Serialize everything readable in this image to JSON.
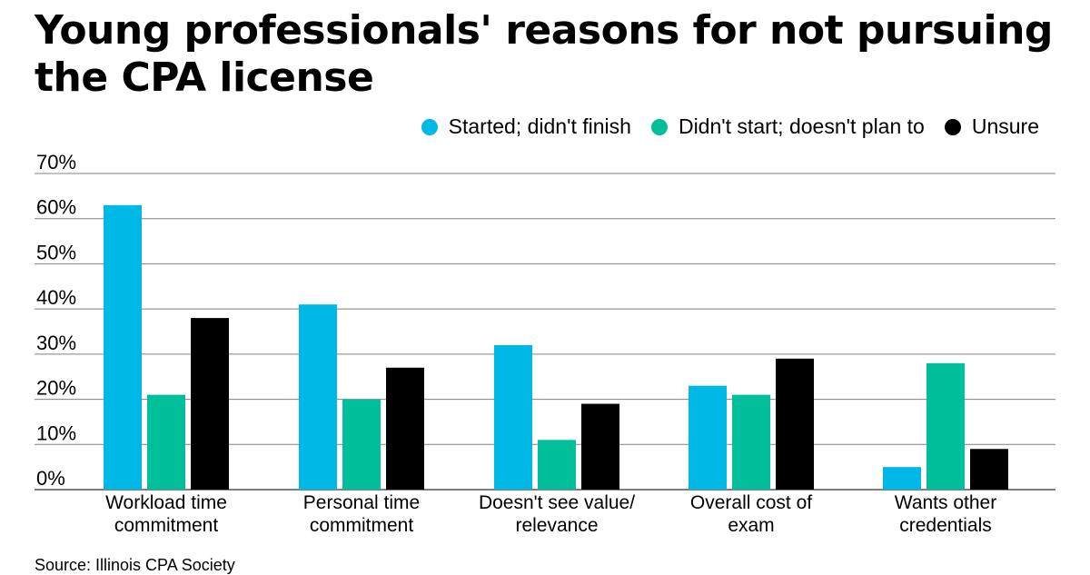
{
  "title": "Young professionals' reasons for not pursuing the CPA license",
  "source": "Source: Illinois CPA Society",
  "colors": {
    "started": "#00b8e6",
    "didnt_start": "#00bf9a",
    "unsure": "#000000",
    "grid": "#808080"
  },
  "legend": [
    {
      "label": "Started; didn't finish",
      "color": "#00b8e6"
    },
    {
      "label": "Didn't start; doesn't plan to",
      "color": "#00bf9a"
    },
    {
      "label": "Unsure",
      "color": "#000000"
    }
  ],
  "chart_data": {
    "type": "bar",
    "title": "Young professionals' reasons for not pursuing the CPA license",
    "xlabel": "",
    "ylabel": "",
    "ylim": [
      0,
      70
    ],
    "yticks": [
      "0%",
      "10%",
      "20%",
      "30%",
      "40%",
      "50%",
      "60%",
      "70%"
    ],
    "grid": true,
    "legend_position": "top-right",
    "categories": [
      [
        "Workload time",
        "commitment"
      ],
      [
        "Personal time",
        "commitment"
      ],
      [
        "Doesn't see value/",
        "relevance"
      ],
      [
        "Overall cost of",
        "exam"
      ],
      [
        "Wants other",
        "credentials"
      ]
    ],
    "series": [
      {
        "name": "Started; didn't finish",
        "values": [
          63,
          41,
          32,
          23,
          5
        ]
      },
      {
        "name": "Didn't start; doesn't plan to",
        "values": [
          21,
          20,
          11,
          21,
          28
        ]
      },
      {
        "name": "Unsure",
        "values": [
          38,
          27,
          19,
          29,
          9
        ]
      }
    ]
  }
}
